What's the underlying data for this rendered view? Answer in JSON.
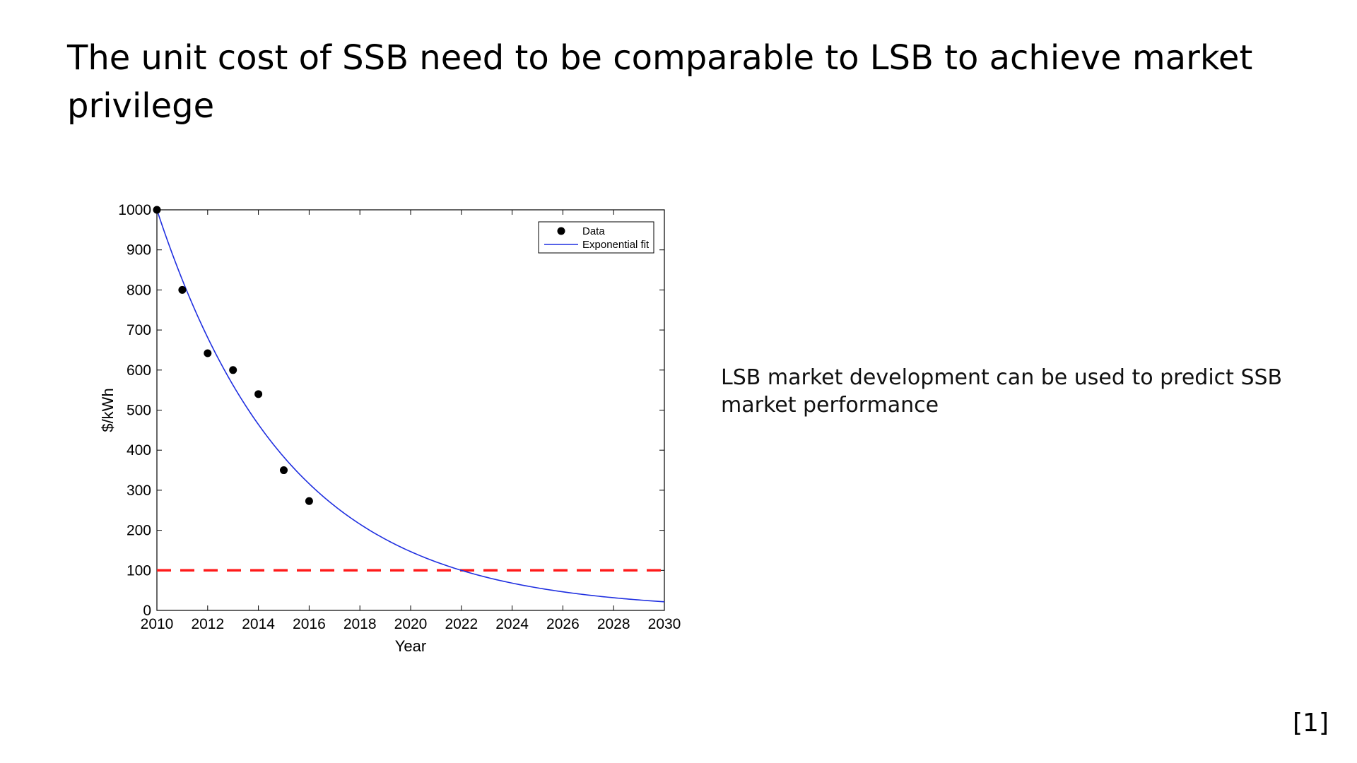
{
  "slide": {
    "title": "The unit cost of SSB need to be comparable to LSB to achieve market privilege",
    "side_note": "LSB market development can be used to predict SSB market performance",
    "reference": "[1]"
  },
  "chart_data": {
    "type": "scatter",
    "xlabel": "Year",
    "ylabel": "$/kWh",
    "xlim": [
      2010,
      2030
    ],
    "ylim": [
      0,
      1000
    ],
    "xticks": [
      2010,
      2012,
      2014,
      2016,
      2018,
      2020,
      2022,
      2024,
      2026,
      2028,
      2030
    ],
    "yticks": [
      0,
      100,
      200,
      300,
      400,
      500,
      600,
      700,
      800,
      900,
      1000
    ],
    "grid": false,
    "legend_position": "top-right",
    "series": [
      {
        "name": "Data",
        "kind": "scatter",
        "color": "#000000",
        "x": [
          2010,
          2011,
          2012,
          2013,
          2014,
          2015,
          2016
        ],
        "y": [
          1000,
          800,
          642,
          600,
          540,
          350,
          273
        ]
      },
      {
        "name": "Exponential fit",
        "kind": "line",
        "color": "#1f2fe0",
        "model": {
          "a": 1000,
          "b": -0.1919,
          "x0": 2010
        },
        "x": [
          2010,
          2011,
          2012,
          2013,
          2014,
          2015,
          2016,
          2017,
          2018,
          2019,
          2020,
          2021,
          2022,
          2023,
          2024,
          2025,
          2026,
          2027,
          2028,
          2029,
          2030
        ],
        "y": [
          1000,
          825,
          681,
          562,
          464,
          383,
          316,
          261,
          215,
          178,
          147,
          121,
          100,
          82,
          68,
          56,
          46,
          38,
          32,
          26,
          22
        ]
      }
    ],
    "reference_line": {
      "y": 100,
      "color": "#ff1a1a",
      "style": "dashed"
    }
  }
}
